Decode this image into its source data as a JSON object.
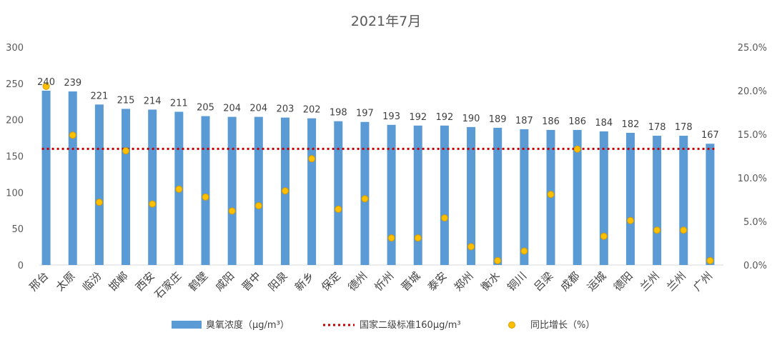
{
  "chart_data": {
    "type": "bar",
    "title": "2021年7月",
    "categories": [
      "邢台",
      "太原",
      "临汾",
      "邯郸",
      "西安",
      "石家庄",
      "鹤壁",
      "咸阳",
      "晋中",
      "阳泉",
      "新乡",
      "保定",
      "德州",
      "忻州",
      "晋城",
      "泰安",
      "郑州",
      "衡水",
      "铜川",
      "吕梁",
      "成都",
      "运城",
      "德阳",
      "兰州",
      "兰州",
      "广州"
    ],
    "series": [
      {
        "name": "臭氧浓度（μg/m³）",
        "type": "bar",
        "axis": "left",
        "color": "#5b9bd5",
        "values": [
          240,
          239,
          221,
          215,
          214,
          211,
          205,
          204,
          204,
          203,
          202,
          198,
          197,
          193,
          192,
          192,
          190,
          189,
          187,
          186,
          186,
          184,
          182,
          178,
          178,
          167
        ]
      },
      {
        "name": "国家二级标准160μg/m³",
        "type": "line",
        "axis": "left",
        "color": "#c00000",
        "value": 160
      },
      {
        "name": "同比增长（%）",
        "type": "scatter",
        "axis": "right",
        "color": "#ffc000",
        "values": [
          20.5,
          14.9,
          7.2,
          13.1,
          7.0,
          8.7,
          7.8,
          6.2,
          6.8,
          8.5,
          12.2,
          6.4,
          7.6,
          3.1,
          3.1,
          5.4,
          2.1,
          0.5,
          1.6,
          8.1,
          13.3,
          3.3,
          5.1,
          4.0,
          4.0,
          0.5
        ]
      }
    ],
    "yAxisLeft": {
      "min": 0,
      "max": 300,
      "ticks": [
        "0",
        "50",
        "100",
        "150",
        "200",
        "250",
        "300"
      ]
    },
    "yAxisRight": {
      "min": 0,
      "max": 25,
      "ticks": [
        "0.0%",
        "5.0%",
        "10.0%",
        "15.0%",
        "20.0%",
        "25.0%"
      ]
    },
    "legend_position": "bottom",
    "grid": false
  }
}
